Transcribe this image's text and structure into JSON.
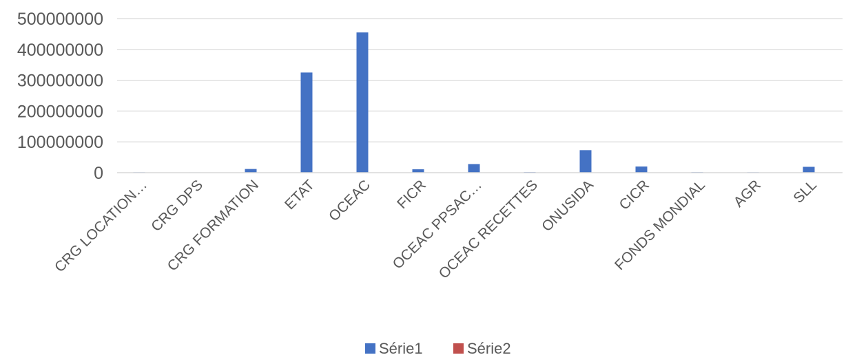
{
  "chart_data": {
    "type": "bar",
    "categories": [
      "CRG LOCATION…",
      "CRG DPS",
      "CRG FORMATION",
      "ETAT",
      "OCEAC",
      "FICR",
      "OCEAC PPSAC…",
      "OCEAC RECETTES",
      "ONUSIDA",
      "CICR",
      "FONDS MONDIAL",
      "AGR",
      "SLL"
    ],
    "series": [
      {
        "name": "Série1",
        "color": "#4472C4",
        "values": [
          1500000,
          1200000,
          12000000,
          325000000,
          455000000,
          11000000,
          28000000,
          2000000,
          73000000,
          20000000,
          1800000,
          1500000,
          19000000
        ]
      },
      {
        "name": "Série2",
        "color": "#C0504D",
        "values": [
          0,
          0,
          0,
          0,
          0,
          0,
          0,
          0,
          0,
          0,
          0,
          0,
          0
        ]
      }
    ],
    "yticks": [
      "0",
      "100000000",
      "200000000",
      "300000000",
      "400000000",
      "500000000"
    ],
    "ylim": [
      0,
      500000000
    ],
    "grid": true,
    "legend_position": "bottom"
  }
}
